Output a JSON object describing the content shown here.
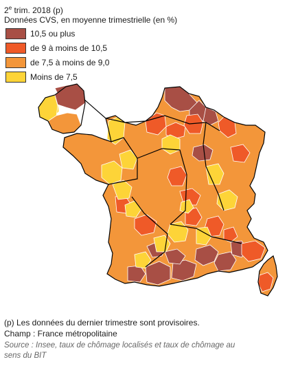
{
  "header": {
    "period_prefix": "2",
    "period_sup": "e",
    "period_rest": " trim. 2018 (p)",
    "subtitle": "Données CVS, en moyenne trimestrielle (en %)"
  },
  "legend": {
    "items": [
      {
        "label": "10,5 ou plus",
        "color": "#a84f45"
      },
      {
        "label": "de 9 à moins de 10,5",
        "color": "#ef5a28"
      },
      {
        "label": "de 7,5 à moins de 9,0",
        "color": "#f3963a"
      },
      {
        "label": "Moins de 7,5",
        "color": "#fdd438"
      }
    ]
  },
  "footer": {
    "note": "(p) Les données du dernier trimestre sont provisoires.",
    "scope": "Champ : France métropolitaine",
    "source": "Source : Insee, taux de chômage localisés et taux de chômage au sens du BIT"
  },
  "colors": {
    "border_thin": "#ffffff",
    "border_region": "#000000"
  }
}
